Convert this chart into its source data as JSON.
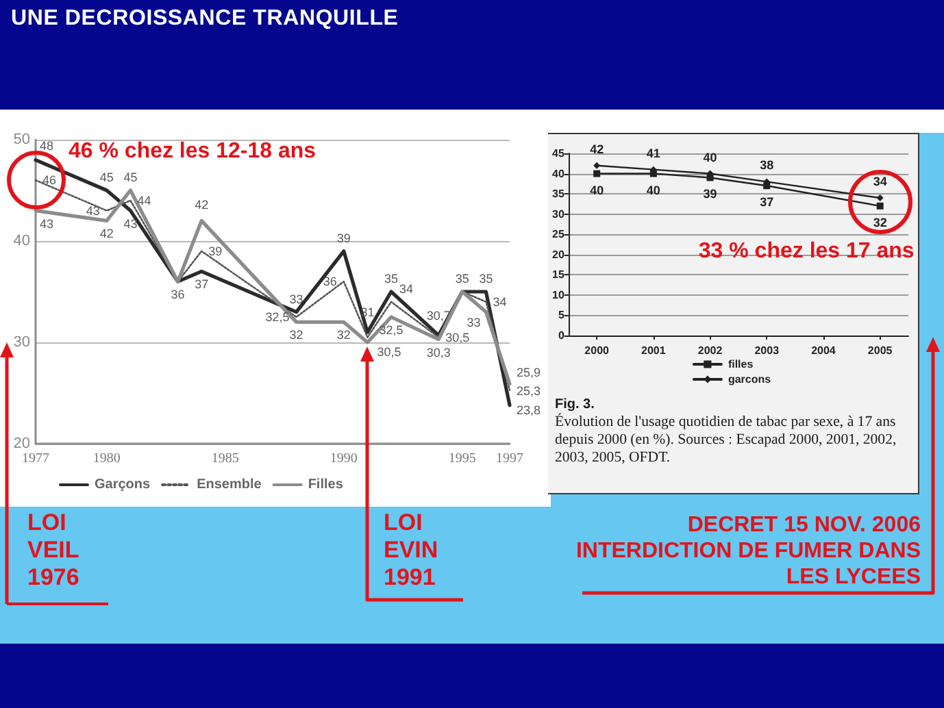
{
  "chart_data": [
    {
      "type": "line",
      "title": "UNE DECROISSANCE TRANQUILLE",
      "x": [
        1977,
        1980,
        1981,
        1983,
        1984,
        1988,
        1990,
        1991,
        1992,
        1994,
        1995,
        1996,
        1997
      ],
      "series": [
        {
          "name": "Garçons",
          "color": "#2b2b2b",
          "line_style": "solid",
          "values": [
            48,
            45,
            43,
            36,
            37,
            33,
            39,
            31,
            35,
            30.7,
            35,
            35,
            23.8
          ],
          "value_labels": [
            "48",
            "45",
            "43",
            "36",
            "37",
            "33",
            "39",
            "31",
            "35",
            "30,7",
            "35",
            "35",
            "23,8"
          ]
        },
        {
          "name": "Ensemble",
          "color": "#555555",
          "line_style": "dotted",
          "values": [
            46,
            43,
            44,
            36,
            39,
            32.5,
            36,
            30.5,
            34,
            30.5,
            35,
            34,
            25.3
          ],
          "value_labels": [
            "46",
            "43",
            "44",
            null,
            "39",
            "32,5",
            "36",
            "30,5",
            "34",
            "30,5",
            null,
            "34",
            "25,3"
          ]
        },
        {
          "name": "Filles",
          "color": "#8c8c8c",
          "line_style": "solid",
          "values": [
            43,
            42,
            45,
            36,
            42,
            32,
            32,
            30,
            32.5,
            30.3,
            35,
            33,
            25.9
          ],
          "value_labels": [
            "43",
            "42",
            "45",
            null,
            "42",
            "32",
            "32",
            null,
            "32,5",
            "30,3",
            null,
            "33",
            "25,9"
          ]
        }
      ],
      "xlim": [
        1977,
        1997
      ],
      "xticks": [
        1977,
        1980,
        1985,
        1990,
        1995,
        1997
      ],
      "ylim": [
        20,
        50
      ],
      "yticks": [
        20,
        30,
        40,
        50
      ],
      "grid": "y",
      "legend": "bottom",
      "marker": "none",
      "annotations": [
        {
          "text": "46 % chez les 12-18 ans",
          "x": 1977,
          "y": 46
        },
        "LOI VEIL 1976",
        "LOI EVIN 1991"
      ]
    },
    {
      "type": "line",
      "x": [
        2000,
        2001,
        2002,
        2003,
        2005
      ],
      "series": [
        {
          "name": "filles",
          "color": "#222222",
          "marker": "square",
          "values": [
            40,
            40,
            39,
            37,
            32
          ]
        },
        {
          "name": "garcons",
          "color": "#222222",
          "marker": "diamond",
          "values": [
            42,
            41,
            40,
            38,
            34
          ]
        }
      ],
      "xlim": [
        1999.5,
        2005.5
      ],
      "xticks": [
        2000,
        2001,
        2002,
        2003,
        2004,
        2005
      ],
      "ylim": [
        0,
        45
      ],
      "yticks": [
        0,
        5,
        10,
        15,
        20,
        25,
        30,
        35,
        40,
        45
      ],
      "grid": "y",
      "legend": "bottom",
      "data_labels": true,
      "annotations": [
        {
          "text": "33 % chez les 17 ans",
          "x": 2005,
          "y": 33
        },
        "Fig. 3.",
        "Évolution de l'usage quotidien de tabac par sexe, à 17 ans depuis 2000 (en %). Sources : Escapad 2000, 2001, 2002, 2003, 2005, OFDT.",
        "DECRET 15 NOV. 2006 INTERDICTION DE FUMER DANS LES LYCEES"
      ]
    }
  ]
}
